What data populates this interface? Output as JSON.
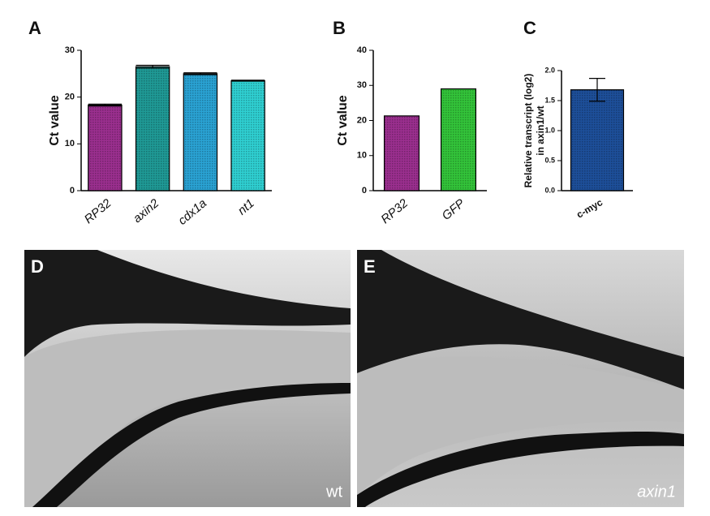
{
  "chart_data": [
    {
      "type": "bar",
      "panel_label": "A",
      "ylabel": [
        "Ct value"
      ],
      "categories": [
        "RP32",
        "axin2",
        "cdx1a",
        "nt1"
      ],
      "category_style": "italic",
      "values": [
        18.3,
        26.5,
        25.0,
        23.5
      ],
      "errors": [
        0.2,
        0.3,
        0.2,
        0.1
      ],
      "colors": [
        "#9b2f8f",
        "#1f9a96",
        "#2aa3d4",
        "#2fd0d2"
      ],
      "ylim": [
        0,
        30
      ],
      "yticks": [
        0,
        10,
        20,
        30
      ]
    },
    {
      "type": "bar",
      "panel_label": "B",
      "ylabel": [
        "Ct value"
      ],
      "categories": [
        "RP32",
        "GFP"
      ],
      "category_style": "italic",
      "values": [
        21.3,
        29.0
      ],
      "colors": [
        "#9b2f8f",
        "#33c43a"
      ],
      "ylim": [
        0,
        40
      ],
      "yticks": [
        0,
        10,
        20,
        30,
        40
      ]
    },
    {
      "type": "bar",
      "panel_label": "C",
      "ylabel": [
        "Relative transcript (log2)",
        "in axin1/wt"
      ],
      "categories": [
        "c-myc"
      ],
      "category_style": "bold",
      "values": [
        1.68
      ],
      "errors": [
        0.19
      ],
      "colors": [
        "#1d4f9a"
      ],
      "ylim": [
        0,
        2.0
      ],
      "yticks": [
        {
          "value": 0,
          "label": "0.0"
        },
        0.5,
        {
          "value": 1,
          "label": "1.0"
        },
        1.5,
        {
          "value": 2,
          "label": "2.0"
        }
      ]
    }
  ],
  "images": [
    {
      "label": "D",
      "caption": "wt"
    },
    {
      "label": "E",
      "caption": "axin1"
    }
  ]
}
